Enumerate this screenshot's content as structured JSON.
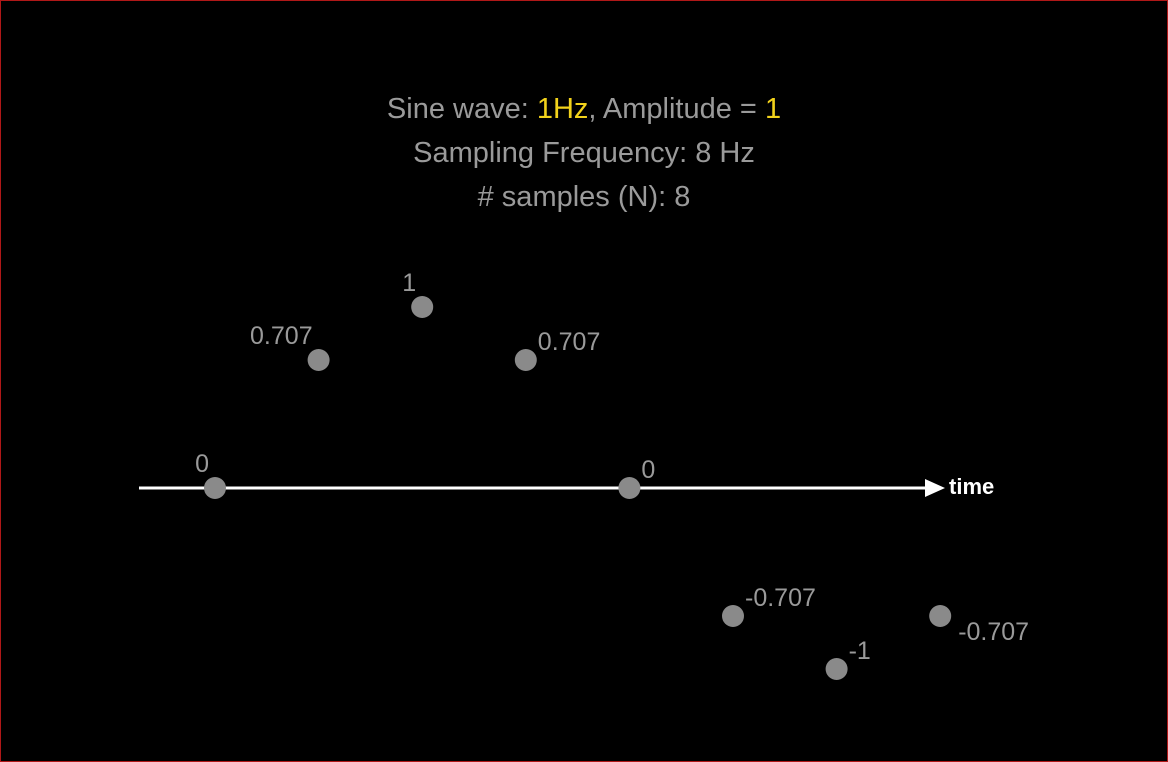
{
  "header": {
    "line1_prefix": "Sine wave: ",
    "line1_freq": "1Hz",
    "line1_middle": ", Amplitude = ",
    "line1_amp": "1",
    "line2": "Sampling Frequency: 8 Hz",
    "line3": "# samples (N): 8"
  },
  "colors": {
    "background": "#000000",
    "text": "#9a9a9a",
    "highlight": "#f2d21b",
    "sample_dot": "#8a8a8a",
    "axis": "#ffffff",
    "border": "#b01818"
  },
  "axis": {
    "label": "time"
  },
  "samples": [
    {
      "index": 0,
      "value": 0,
      "label": "0",
      "label_side": "left"
    },
    {
      "index": 1,
      "value": 0.707,
      "label": "0.707",
      "label_side": "left"
    },
    {
      "index": 2,
      "value": 1,
      "label": "1",
      "label_side": "left"
    },
    {
      "index": 3,
      "value": 0.707,
      "label": "0.707",
      "label_side": "right"
    },
    {
      "index": 4,
      "value": 0,
      "label": "0",
      "label_side": "right"
    },
    {
      "index": 5,
      "value": -0.707,
      "label": "-0.707",
      "label_side": "right"
    },
    {
      "index": 6,
      "value": -1,
      "label": "-1",
      "label_side": "right"
    },
    {
      "index": 7,
      "value": -0.707,
      "label": "-0.707",
      "label_side": "right-below"
    }
  ]
}
